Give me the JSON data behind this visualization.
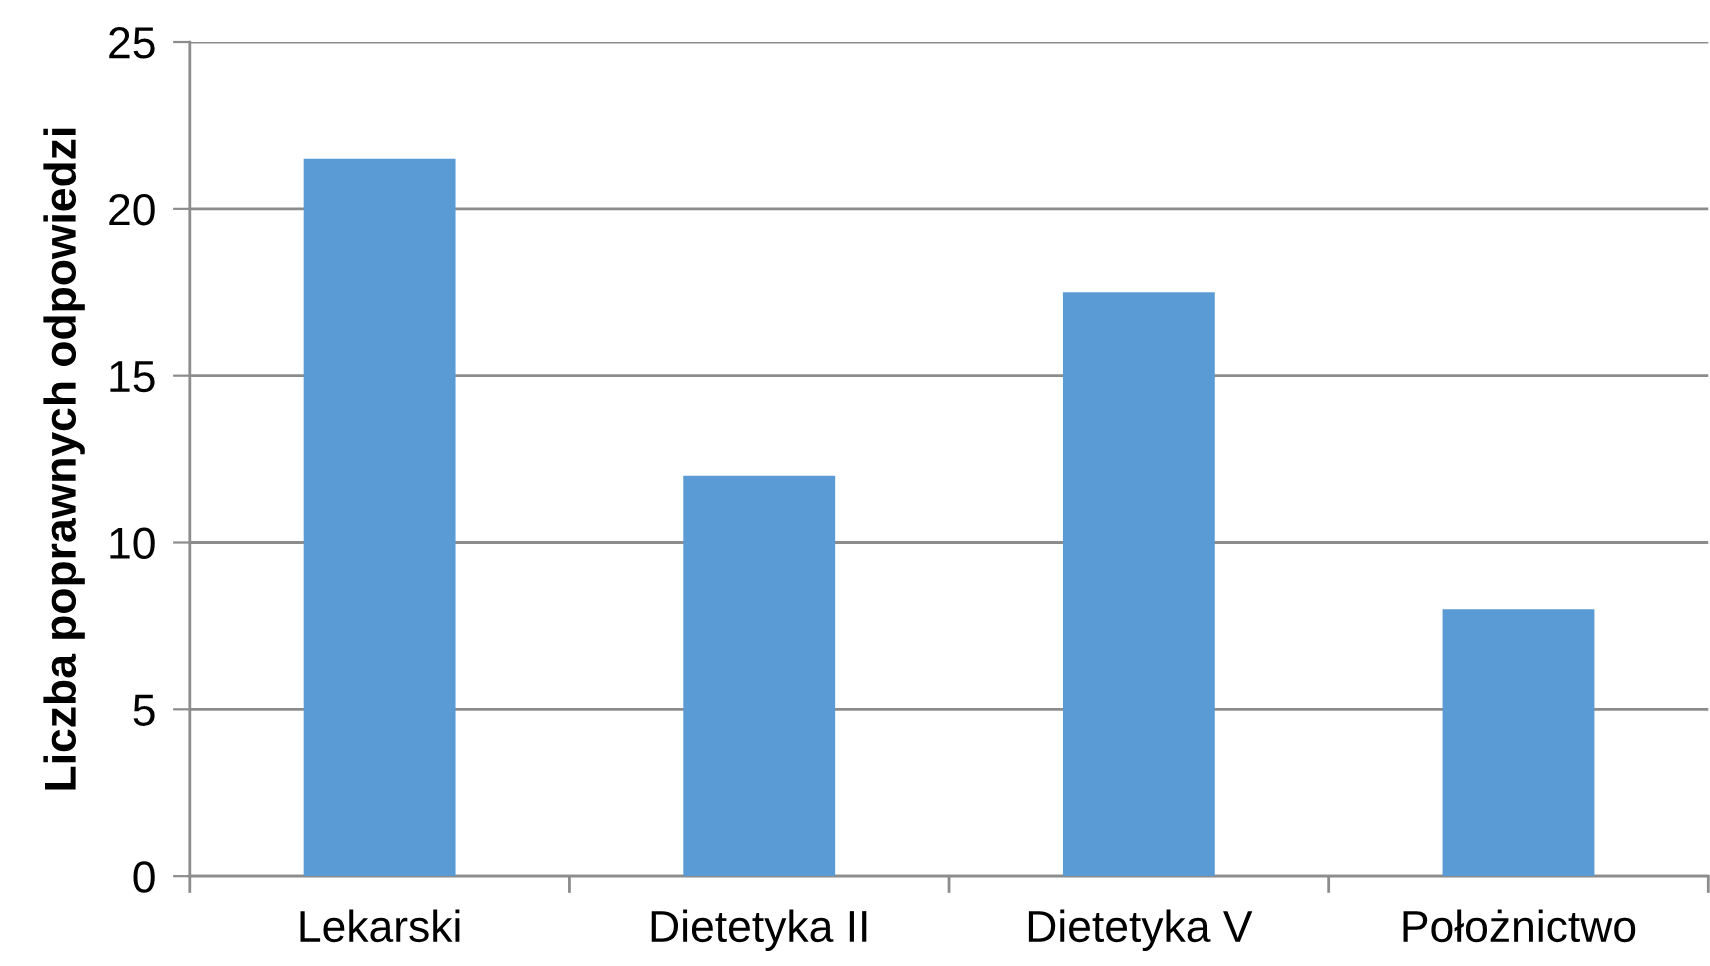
{
  "chart_data": {
    "type": "bar",
    "ylabel": "Liczba poprawnych odpowiedzi",
    "categories": [
      "Lekarski",
      "Dietetyka II",
      "Dietetyka V",
      "Położnictwo"
    ],
    "values": [
      21.5,
      12,
      17.5,
      8
    ],
    "color": "#5b9bd5",
    "ylim": [
      0,
      25
    ],
    "yticks": [
      0,
      5,
      10,
      15,
      20,
      25
    ],
    "grid": "y"
  }
}
